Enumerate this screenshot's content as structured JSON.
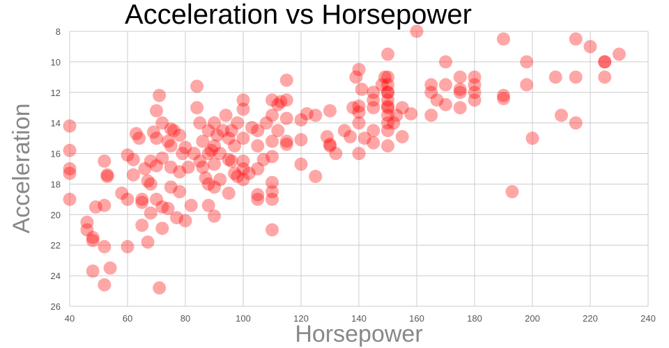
{
  "chart_data": {
    "type": "scatter",
    "title": "Acceleration vs Horsepower",
    "xlabel": "Horsepower",
    "ylabel": "Acceleration",
    "xlim": [
      40,
      240
    ],
    "ylim": [
      8,
      26
    ],
    "y_inverted": true,
    "xticks": [
      "40",
      "60",
      "80",
      "100",
      "120",
      "140",
      "160",
      "180",
      "200",
      "220",
      "240"
    ],
    "yticks": [
      "8",
      "10",
      "12",
      "14",
      "16",
      "18",
      "20",
      "22",
      "24",
      "26"
    ],
    "grid": true,
    "marker_color": "#ff0000",
    "series": [
      {
        "x": [
          40,
          40,
          40,
          40,
          40,
          46,
          46,
          48,
          48,
          48,
          49,
          52,
          52,
          52,
          52,
          53,
          53,
          54,
          58,
          60,
          60,
          60,
          62,
          62,
          63,
          64,
          65,
          65,
          65,
          66,
          67,
          67,
          68,
          68,
          68,
          69,
          70,
          70,
          70,
          70,
          71,
          71,
          72,
          72,
          72,
          72,
          74,
          74,
          75,
          75,
          75,
          75,
          76,
          77,
          78,
          78,
          78,
          79,
          80,
          80,
          81,
          82,
          83,
          84,
          84,
          85,
          85,
          86,
          86,
          87,
          88,
          88,
          88,
          88,
          89,
          90,
          90,
          90,
          90,
          90,
          91,
          92,
          92,
          93,
          94,
          95,
          95,
          95,
          96,
          96,
          97,
          97,
          98,
          98,
          100,
          100,
          100,
          100,
          100,
          100,
          102,
          103,
          105,
          105,
          105,
          105,
          105,
          107,
          108,
          110,
          110,
          110,
          110,
          110,
          110,
          110,
          110,
          112,
          112,
          113,
          115,
          115,
          115,
          115,
          115,
          120,
          120,
          120,
          122,
          125,
          125,
          129,
          130,
          130,
          130,
          132,
          135,
          137,
          138,
          139,
          140,
          140,
          140,
          140,
          140,
          141,
          142,
          145,
          145,
          145,
          145,
          145,
          148,
          149,
          150,
          150,
          150,
          150,
          150,
          150,
          150,
          150,
          150,
          150,
          150,
          150,
          152,
          153,
          155,
          155,
          158,
          160,
          165,
          165,
          165,
          167,
          170,
          170,
          170,
          175,
          175,
          175,
          175,
          180,
          180,
          180,
          180,
          190,
          190,
          190,
          193,
          198,
          198,
          200,
          208,
          210,
          215,
          215,
          215,
          220,
          225,
          225,
          225,
          230
        ],
        "y": [
          14.2,
          15.8,
          17.0,
          17.3,
          19.0,
          20.5,
          21.0,
          21.5,
          21.7,
          23.7,
          19.5,
          16.5,
          19.4,
          22.1,
          24.6,
          17.4,
          17.5,
          23.5,
          18.6,
          16.1,
          19.0,
          22.1,
          16.4,
          17.4,
          14.7,
          15.0,
          19.0,
          19.2,
          20.7,
          17.0,
          17.8,
          21.8,
          16.5,
          18.0,
          19.9,
          14.6,
          13.2,
          15.0,
          16.8,
          19.0,
          12.2,
          24.8,
          14.0,
          16.3,
          19.5,
          20.9,
          15.2,
          19.6,
          14.4,
          15.5,
          16.9,
          18.2,
          14.5,
          20.2,
          14.8,
          17.2,
          18.5,
          16.0,
          15.6,
          20.4,
          16.9,
          19.4,
          16.0,
          11.6,
          13.0,
          14.0,
          16.5,
          15.2,
          16.9,
          17.6,
          14.5,
          16.0,
          18.0,
          19.4,
          15.8,
          14.0,
          15.5,
          16.7,
          18.2,
          20.1,
          14.8,
          16.0,
          17.7,
          14.5,
          13.5,
          15.0,
          16.4,
          18.6,
          14.5,
          16.5,
          15.5,
          17.3,
          14.0,
          17.5,
          12.5,
          13.1,
          15.0,
          16.5,
          17.0,
          17.7,
          17.3,
          14.3,
          14.5,
          15.5,
          17.0,
          18.7,
          19.0,
          16.4,
          14.0,
          12.5,
          13.5,
          15.2,
          16.2,
          17.9,
          19.0,
          21.0,
          18.5,
          12.8,
          14.5,
          12.6,
          11.2,
          12.5,
          13.7,
          15.2,
          15.4,
          13.8,
          15.1,
          16.7,
          13.4,
          13.5,
          17.5,
          14.9,
          13.2,
          15.4,
          15.5,
          16.0,
          14.5,
          14.9,
          13.0,
          11.0,
          13.3,
          12.9,
          14.0,
          16.0,
          10.5,
          11.8,
          15.0,
          12.0,
          13.0,
          14.5,
          15.3,
          12.5,
          11.5,
          11.0,
          11.5,
          12.0,
          12.5,
          13.0,
          13.5,
          14.0,
          14.5,
          15.5,
          9.5,
          11.0,
          12.0,
          12.9,
          14.0,
          13.5,
          14.9,
          13.0,
          13.4,
          8.0,
          11.5,
          12.0,
          13.5,
          12.5,
          10.0,
          11.5,
          12.8,
          11.0,
          12.0,
          13.0,
          11.8,
          11.0,
          11.5,
          12.5,
          12.0,
          8.5,
          12.2,
          12.4,
          18.5,
          10.0,
          11.5,
          15.0,
          11.0,
          13.5,
          8.5,
          11.0,
          14.0,
          9.0,
          10.0,
          10.0,
          11.0,
          9.5
        ]
      }
    ]
  }
}
